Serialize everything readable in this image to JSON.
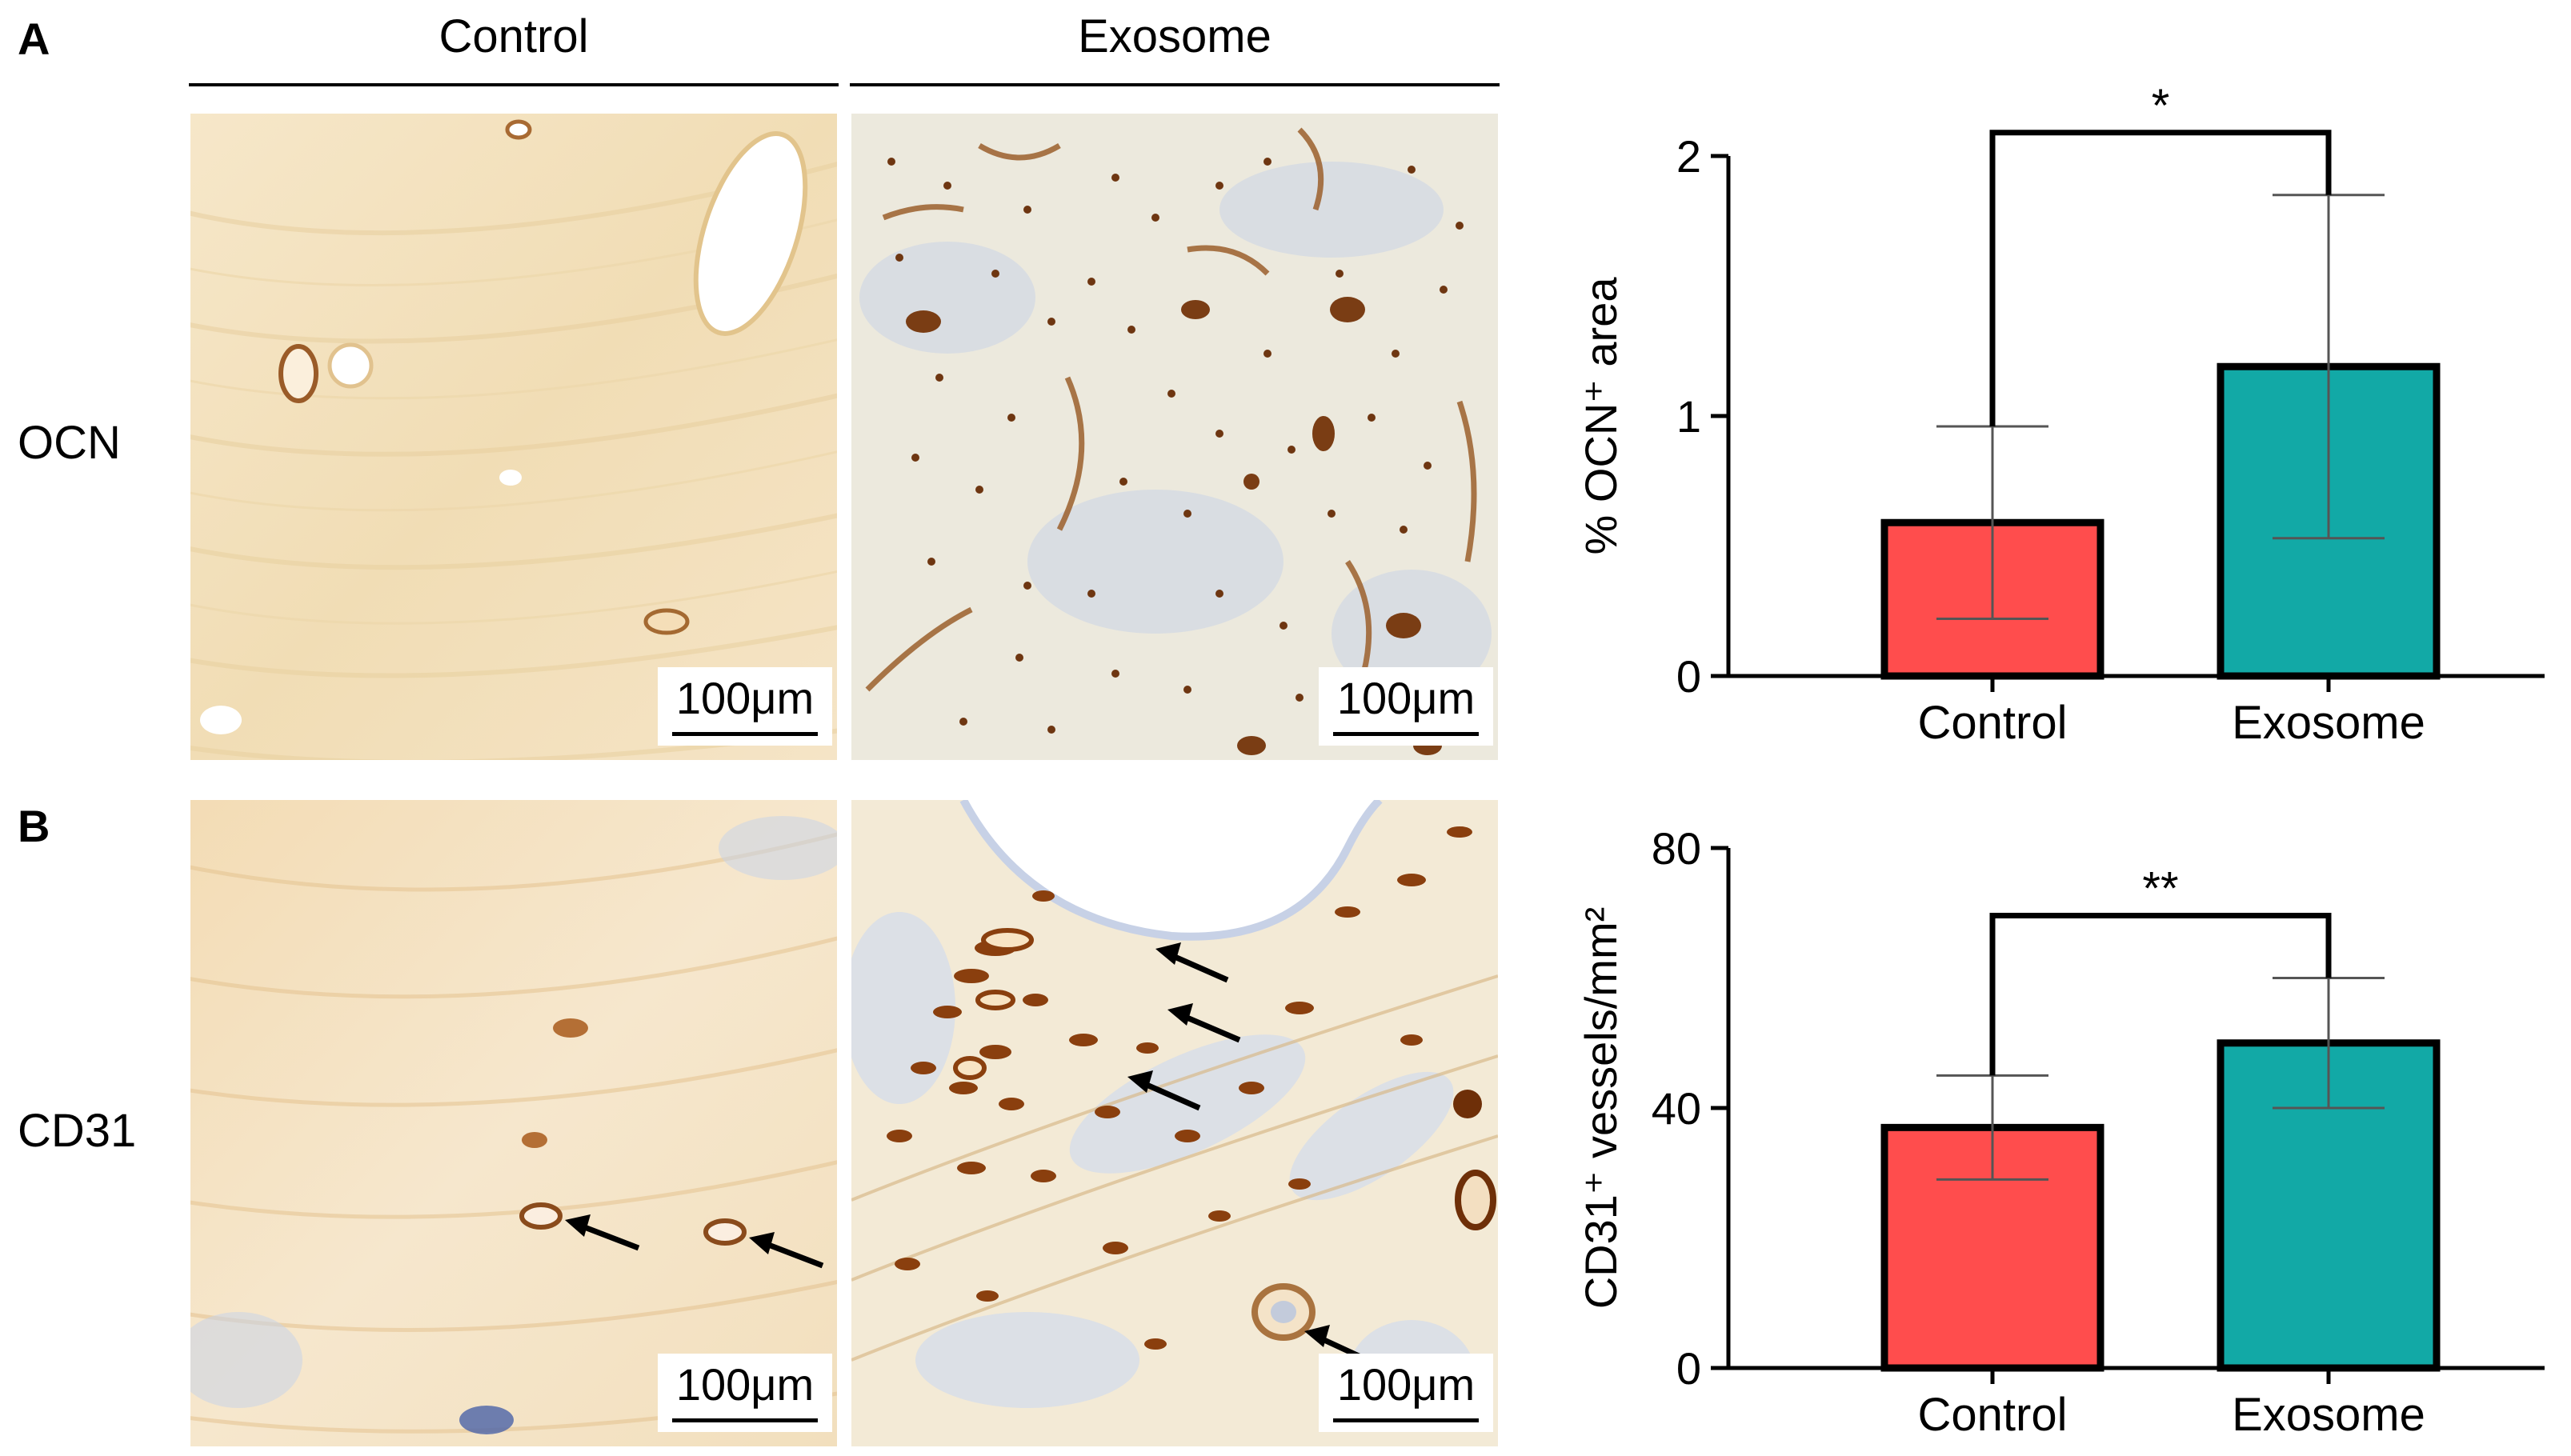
{
  "panels": [
    {
      "letter": "A"
    },
    {
      "letter": "B"
    }
  ],
  "columns": [
    "Control",
    "Exosome"
  ],
  "rows": [
    "OCN",
    "CD31"
  ],
  "scale_bar_label": "100μm",
  "colors": {
    "control": "#ff4d4d",
    "exosome": "#12a9a6",
    "tissue_light": "#f4e6cc",
    "tissue_brown": "#8b4a1a",
    "hematoxylin": "#b9c6e0"
  },
  "chart_data": [
    {
      "type": "bar",
      "categories": [
        "Control",
        "Exosome"
      ],
      "values": [
        0.59,
        1.19
      ],
      "error_low": [
        0.22,
        0.53
      ],
      "error_high": [
        0.96,
        1.85
      ],
      "ylabel": "% OCN⁺ area",
      "yticks": [
        "0",
        "1",
        "2"
      ],
      "ylim": [
        0,
        2
      ],
      "significance": "*"
    },
    {
      "type": "bar",
      "categories": [
        "Control",
        "Exosome"
      ],
      "values": [
        37,
        50
      ],
      "error_low": [
        29,
        40
      ],
      "error_high": [
        45,
        60
      ],
      "ylabel": "CD31⁺ vessels/mm²",
      "yticks": [
        "0",
        "40",
        "80"
      ],
      "ylim": [
        0,
        80
      ],
      "significance": "**"
    }
  ]
}
